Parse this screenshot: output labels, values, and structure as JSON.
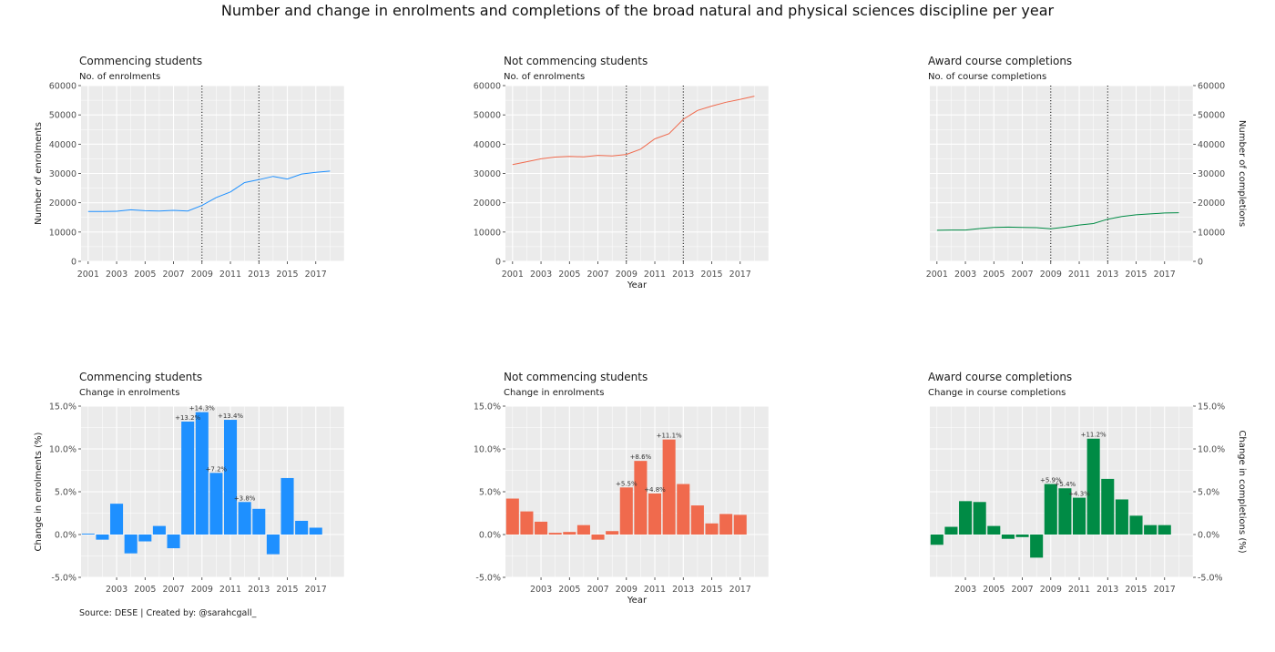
{
  "title": "Number and change in enrolments and completions of the broad natural and physical sciences discipline per year",
  "source": "Source: DESE | Created by: @sarahcgall_",
  "colors": {
    "commencing": "#1e90ff",
    "not_commencing": "#f06a4d",
    "completions": "#008b45",
    "panel_bg": "#ebebeb",
    "grid": "#ffffff",
    "ref_line": "#000000"
  },
  "chart_data": [
    {
      "type": "line",
      "title": "Commencing students",
      "subtitle": "No. of enrolments",
      "xlabel": "",
      "ylabel": "Number of enrolments",
      "ylabel_side": "left",
      "ylim": [
        0,
        60000
      ],
      "yticks": [
        "0",
        "10000",
        "20000",
        "30000",
        "40000",
        "50000",
        "60000"
      ],
      "xlim": [
        2000.5,
        2019
      ],
      "xticks": [
        "2001",
        "2003",
        "2005",
        "2007",
        "2009",
        "2011",
        "2013",
        "2015",
        "2017"
      ],
      "ref_lines_x": [
        2009,
        2013
      ],
      "grid": true,
      "series": [
        {
          "color": "#1e90ff",
          "x": [
            2001,
            2002,
            2003,
            2004,
            2005,
            2006,
            2007,
            2008,
            2009,
            2010,
            2011,
            2012,
            2013,
            2014,
            2015,
            2016,
            2017,
            2018
          ],
          "y": [
            17000,
            17000,
            17100,
            17600,
            17300,
            17200,
            17400,
            17200,
            19100,
            21800,
            23700,
            26900,
            27900,
            29000,
            28100,
            29800,
            30400,
            30800
          ]
        }
      ]
    },
    {
      "type": "line",
      "title": "Not commencing students",
      "subtitle": "No. of enrolments",
      "xlabel": "Year",
      "ylabel": "",
      "ylabel_side": "left",
      "ylim": [
        0,
        60000
      ],
      "yticks": [
        "0",
        "10000",
        "20000",
        "30000",
        "40000",
        "50000",
        "60000"
      ],
      "xlim": [
        2000.5,
        2019
      ],
      "xticks": [
        "2001",
        "2003",
        "2005",
        "2007",
        "2009",
        "2011",
        "2013",
        "2015",
        "2017"
      ],
      "ref_lines_x": [
        2009,
        2013
      ],
      "grid": true,
      "series": [
        {
          "color": "#f06a4d",
          "x": [
            2001,
            2002,
            2003,
            2004,
            2005,
            2006,
            2007,
            2008,
            2009,
            2010,
            2011,
            2012,
            2013,
            2014,
            2015,
            2016,
            2017,
            2018
          ],
          "y": [
            33000,
            34000,
            35000,
            35600,
            35800,
            35700,
            36200,
            36000,
            36500,
            38300,
            41800,
            43600,
            48500,
            51500,
            53000,
            54300,
            55300,
            56400
          ]
        }
      ]
    },
    {
      "type": "line",
      "title": "Award course completions",
      "subtitle": "No. of course completions",
      "xlabel": "",
      "ylabel": "Number of completions",
      "ylabel_side": "right",
      "ylim": [
        0,
        60000
      ],
      "yticks": [
        "0",
        "10000",
        "20000",
        "30000",
        "40000",
        "50000",
        "60000"
      ],
      "xlim": [
        2000.5,
        2019
      ],
      "xticks": [
        "2001",
        "2003",
        "2005",
        "2007",
        "2009",
        "2011",
        "2013",
        "2015",
        "2017"
      ],
      "ref_lines_x": [
        2009,
        2013
      ],
      "grid": true,
      "series": [
        {
          "color": "#008b45",
          "x": [
            2001,
            2002,
            2003,
            2004,
            2005,
            2006,
            2007,
            2008,
            2009,
            2010,
            2011,
            2012,
            2013,
            2014,
            2015,
            2016,
            2017,
            2018
          ],
          "y": [
            10600,
            10700,
            10700,
            11200,
            11600,
            11700,
            11600,
            11500,
            11100,
            11700,
            12400,
            12900,
            14400,
            15300,
            15900,
            16200,
            16500,
            16600
          ]
        }
      ]
    },
    {
      "type": "bar",
      "title": "Commencing students",
      "subtitle": "Change in enrolments",
      "xlabel": "",
      "ylabel": "Change in enrolments (%)",
      "ylabel_side": "left",
      "ylim": [
        -5,
        15
      ],
      "yticks": [
        "-5.0%",
        "0.0%",
        "5.0%",
        "10.0%",
        "15.0%"
      ],
      "xlim": [
        2000.5,
        2019
      ],
      "xticks": [
        "2003",
        "2005",
        "2007",
        "2009",
        "2011",
        "2013",
        "2015",
        "2017"
      ],
      "grid": true,
      "color": "#1e90ff",
      "x": [
        2001,
        2002,
        2003,
        2004,
        2005,
        2006,
        2007,
        2008,
        2009,
        2010,
        2011,
        2012,
        2013,
        2014,
        2015,
        2016,
        2017,
        2018
      ],
      "values": [
        0.1,
        -0.6,
        3.6,
        -2.2,
        -0.8,
        1.0,
        -1.6,
        13.2,
        14.3,
        7.2,
        13.4,
        3.8,
        3.0,
        -2.3,
        6.6,
        1.6,
        0.8,
        null
      ],
      "labels": [
        "",
        "",
        "",
        "",
        "",
        "",
        "",
        "+13.2%",
        "+14.3%",
        "+7.2%",
        "+13.4%",
        "+3.8%",
        "",
        "",
        "",
        "",
        "",
        ""
      ]
    },
    {
      "type": "bar",
      "title": "Not commencing students",
      "subtitle": "Change in enrolments",
      "xlabel": "Year",
      "ylabel": "",
      "ylabel_side": "left",
      "ylim": [
        -5,
        15
      ],
      "yticks": [
        "-5.0%",
        "0.0%",
        "5.0%",
        "10.0%",
        "15.0%"
      ],
      "xlim": [
        2000.5,
        2019
      ],
      "xticks": [
        "2003",
        "2005",
        "2007",
        "2009",
        "2011",
        "2013",
        "2015",
        "2017"
      ],
      "grid": true,
      "color": "#f06a4d",
      "x": [
        2001,
        2002,
        2003,
        2004,
        2005,
        2006,
        2007,
        2008,
        2009,
        2010,
        2011,
        2012,
        2013,
        2014,
        2015,
        2016,
        2017,
        2018
      ],
      "values": [
        4.2,
        2.7,
        1.5,
        0.2,
        0.3,
        1.1,
        -0.6,
        0.4,
        5.5,
        8.6,
        4.8,
        11.1,
        5.9,
        3.4,
        1.3,
        2.4,
        2.3,
        null
      ],
      "labels": [
        "",
        "",
        "",
        "",
        "",
        "",
        "",
        "",
        "+5.5%",
        "+8.6%",
        "+4.8%",
        "+11.1%",
        "",
        "",
        "",
        "",
        "",
        ""
      ]
    },
    {
      "type": "bar",
      "title": "Award course completions",
      "subtitle": "Change in course completions",
      "xlabel": "",
      "ylabel": "Change in completions (%)",
      "ylabel_side": "right",
      "ylim": [
        -5,
        15
      ],
      "yticks": [
        "-5.0%",
        "0.0%",
        "5.0%",
        "10.0%",
        "15.0%"
      ],
      "xlim": [
        2000.5,
        2019
      ],
      "xticks": [
        "2003",
        "2005",
        "2007",
        "2009",
        "2011",
        "2013",
        "2015",
        "2017"
      ],
      "grid": true,
      "color": "#008b45",
      "x": [
        2001,
        2002,
        2003,
        2004,
        2005,
        2006,
        2007,
        2008,
        2009,
        2010,
        2011,
        2012,
        2013,
        2014,
        2015,
        2016,
        2017,
        2018
      ],
      "values": [
        -1.2,
        0.9,
        3.9,
        3.8,
        1.0,
        -0.5,
        -0.3,
        -2.7,
        5.9,
        5.4,
        4.3,
        11.2,
        6.5,
        4.1,
        2.2,
        1.1,
        1.1,
        null
      ],
      "labels": [
        "",
        "",
        "",
        "",
        "",
        "",
        "",
        "",
        "+5.9%",
        "+5.4%",
        "+4.3%",
        "+11.2%",
        "",
        "",
        "",
        "",
        "",
        ""
      ]
    }
  ]
}
